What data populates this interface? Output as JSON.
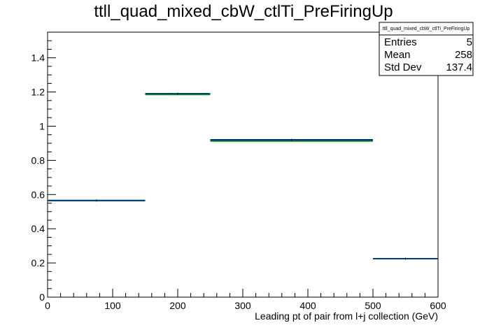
{
  "chart_data": {
    "type": "histogram",
    "title": "ttll_quad_mixed_cbW_ctlTi_PreFiringUp",
    "xlabel": "Leading pt of pair from l+j collection (GeV)",
    "ylabel": "",
    "xlim": [
      0,
      600
    ],
    "ylim": [
      0,
      1.55
    ],
    "x_ticks": [
      "0",
      "100",
      "200",
      "300",
      "400",
      "500",
      "600"
    ],
    "y_ticks": [
      "0",
      "0.2",
      "0.4",
      "0.6",
      "0.8",
      "1",
      "1.2",
      "1.4"
    ],
    "grid": false,
    "legend_position": "none",
    "bin_edges": [
      0,
      150,
      250,
      500,
      600
    ],
    "series": [
      {
        "color": "#000080",
        "values": [
          0.565,
          1.19,
          0.92,
          0.225
        ]
      },
      {
        "color": "#00aa00",
        "values": [
          0.565,
          1.185,
          0.913,
          0.225
        ]
      },
      {
        "color": "#003c7a",
        "values": [
          0.565,
          1.19,
          0.918,
          0.225
        ]
      }
    ],
    "stats_box": {
      "name": "ttll_quad_mixed_cbW_ctlTi_PreFiringUp",
      "rows": [
        {
          "label": "Entries",
          "value": "5"
        },
        {
          "label": "Mean",
          "value": "258"
        },
        {
          "label": "Std Dev",
          "value": "137.4"
        }
      ]
    }
  }
}
